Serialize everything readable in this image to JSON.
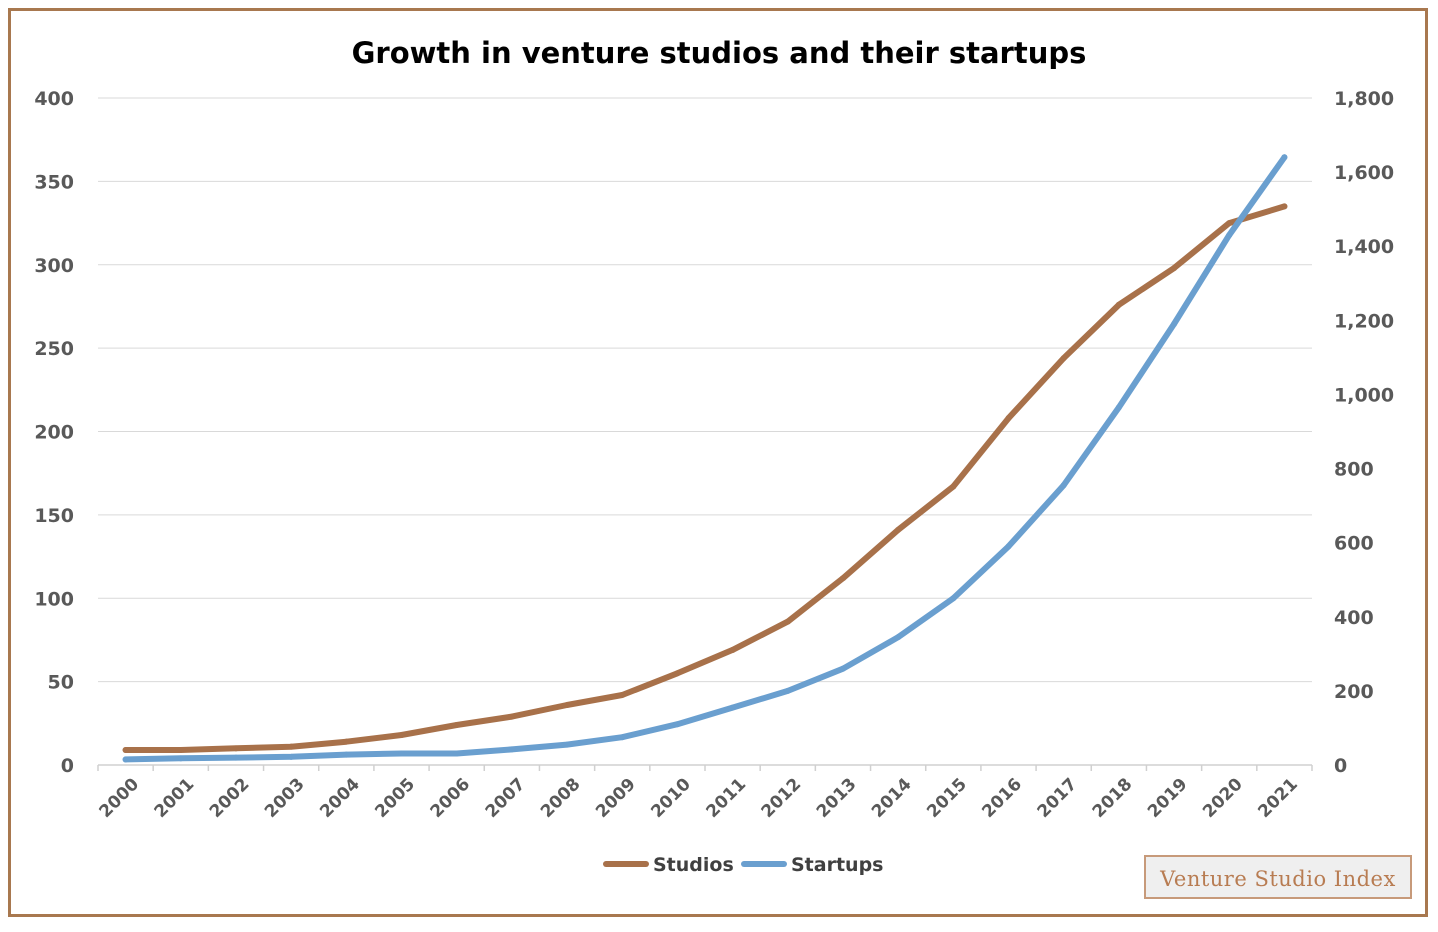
{
  "chart_data": {
    "type": "line",
    "title": "Growth in venture studios and their startups",
    "categories": [
      "2000",
      "2001",
      "2002",
      "2003",
      "2004",
      "2005",
      "2006",
      "2007",
      "2008",
      "2009",
      "2010",
      "2011",
      "2012",
      "2013",
      "2014",
      "2015",
      "2016",
      "2017",
      "2018",
      "2019",
      "2020",
      "2021"
    ],
    "series": [
      {
        "name": "Studios",
        "axis": "left",
        "color": "#a8714a",
        "values": [
          9,
          9,
          10,
          11,
          14,
          18,
          24,
          29,
          36,
          42,
          55,
          69,
          86,
          112,
          141,
          167,
          208,
          244,
          276,
          298,
          325,
          335
        ]
      },
      {
        "name": "Startups",
        "axis": "right",
        "color": "#6a9fcf",
        "values": [
          15,
          18,
          20,
          22,
          28,
          31,
          31,
          42,
          55,
          75,
          110,
          155,
          200,
          260,
          345,
          450,
          590,
          755,
          965,
          1190,
          1430,
          1640
        ]
      }
    ],
    "y_left": {
      "min": 0,
      "max": 400,
      "ticks": [
        "0",
        "50",
        "100",
        "150",
        "200",
        "250",
        "300",
        "350",
        "400"
      ]
    },
    "y_right": {
      "min": 0,
      "max": 1800,
      "ticks": [
        "0",
        "200",
        "400",
        "600",
        "800",
        "1,000",
        "1,200",
        "1,400",
        "1,600",
        "1,800"
      ]
    },
    "grid": true,
    "legend_position": "bottom"
  },
  "watermark": "Venture Studio Index"
}
